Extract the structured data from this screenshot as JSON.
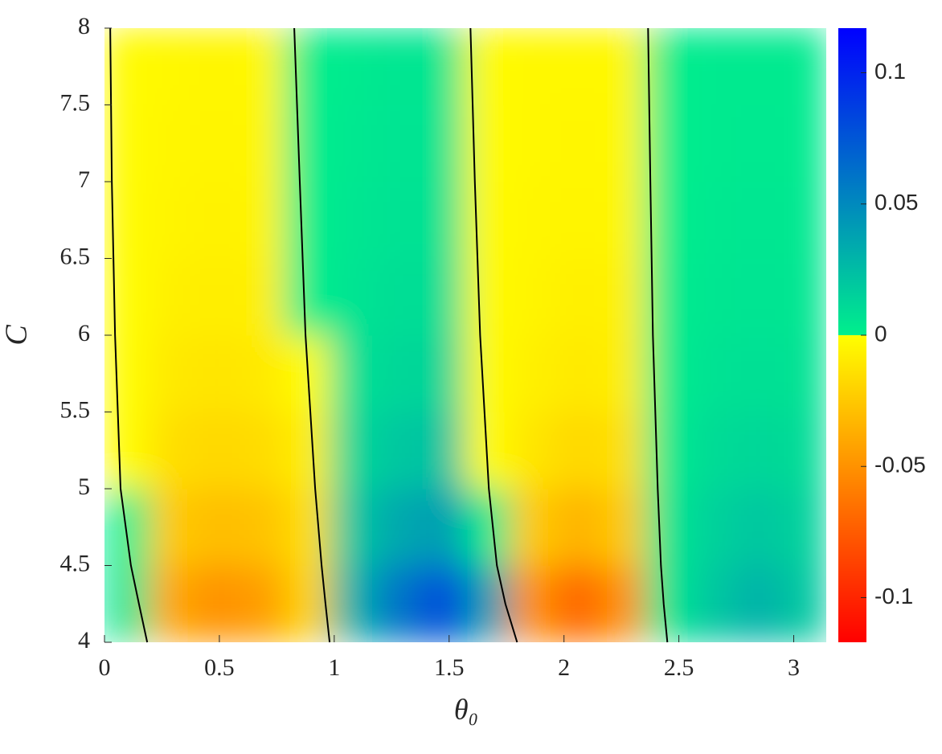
{
  "chart_data": {
    "type": "heatmap",
    "xlabel": "θ₀",
    "ylabel": "C",
    "xlim": [
      0,
      3.14159
    ],
    "ylim": [
      4,
      8
    ],
    "xticks": [
      0,
      0.5,
      1,
      1.5,
      2,
      2.5,
      3
    ],
    "yticks": [
      4,
      4.5,
      5,
      5.5,
      6,
      6.5,
      7,
      7.5,
      8
    ],
    "x": [
      0.098,
      0.295,
      0.491,
      0.687,
      0.884,
      1.08,
      1.276,
      1.473,
      1.669,
      1.865,
      2.062,
      2.258,
      2.454,
      2.651,
      2.847,
      3.043
    ],
    "y": [
      4.25,
      4.75,
      5.25,
      5.75,
      6.25,
      6.75,
      7.25,
      7.75
    ],
    "z": [
      [
        0.005,
        -0.04,
        -0.05,
        -0.045,
        -0.02,
        0.03,
        0.06,
        0.08,
        0.04,
        -0.05,
        -0.07,
        -0.05,
        0.005,
        0.02,
        0.03,
        0.02
      ],
      [
        0.001,
        -0.025,
        -0.03,
        -0.028,
        -0.015,
        0.02,
        0.035,
        0.04,
        0.003,
        -0.025,
        -0.035,
        -0.025,
        0.005,
        0.015,
        0.02,
        0.015
      ],
      [
        -0.001,
        -0.015,
        -0.018,
        -0.016,
        -0.008,
        0.012,
        0.02,
        0.022,
        -0.001,
        -0.012,
        -0.018,
        -0.014,
        0.003,
        0.01,
        0.012,
        0.01
      ],
      [
        -0.001,
        -0.01,
        -0.012,
        -0.01,
        -0.001,
        0.008,
        0.012,
        0.013,
        -0.002,
        -0.007,
        -0.01,
        -0.008,
        0.002,
        0.007,
        0.008,
        0.007
      ],
      [
        -0.001,
        -0.007,
        -0.008,
        -0.007,
        0.001,
        0.006,
        0.009,
        0.009,
        -0.002,
        -0.005,
        -0.007,
        -0.006,
        0.002,
        0.005,
        0.006,
        0.005
      ],
      [
        -0.002,
        -0.005,
        -0.006,
        -0.005,
        0.001,
        0.005,
        0.007,
        0.007,
        -0.002,
        -0.004,
        -0.005,
        -0.004,
        0.001,
        0.004,
        0.005,
        0.004
      ],
      [
        -0.002,
        -0.004,
        -0.005,
        -0.004,
        0.001,
        0.004,
        0.006,
        0.006,
        -0.002,
        -0.003,
        -0.004,
        -0.003,
        0.001,
        0.003,
        0.004,
        0.003
      ],
      [
        -0.002,
        -0.003,
        -0.004,
        -0.003,
        0.001,
        0.003,
        0.005,
        0.005,
        -0.002,
        -0.003,
        -0.003,
        -0.003,
        0.001,
        0.003,
        0.003,
        0.003
      ]
    ],
    "contours": [
      {
        "x": [
          0.025,
          0.032,
          0.046,
          0.07,
          0.115,
          0.15,
          0.186
        ],
        "y": [
          8,
          7,
          6,
          5,
          4.5,
          4.25,
          4
        ]
      },
      {
        "x": [
          0.826,
          0.85,
          0.875,
          0.917,
          0.945,
          0.962,
          0.98
        ],
        "y": [
          8,
          7,
          6,
          5,
          4.5,
          4.25,
          4
        ]
      },
      {
        "x": [
          1.593,
          1.612,
          1.635,
          1.673,
          1.708,
          1.745,
          1.796
        ],
        "y": [
          8,
          7,
          6,
          5,
          4.5,
          4.25,
          4
        ]
      },
      {
        "x": [
          2.366,
          2.376,
          2.387,
          2.408,
          2.422,
          2.434,
          2.45
        ],
        "y": [
          8,
          7,
          6,
          5,
          4.5,
          4.25,
          4
        ]
      }
    ],
    "contour_color": "#000000",
    "clim": [
      -0.117,
      0.117
    ],
    "cticks": [
      -0.1,
      -0.05,
      0,
      0.05,
      0.1
    ],
    "colormap": [
      "#ff0000",
      "#ffff00",
      "#00f08c",
      "#0000ff"
    ]
  }
}
